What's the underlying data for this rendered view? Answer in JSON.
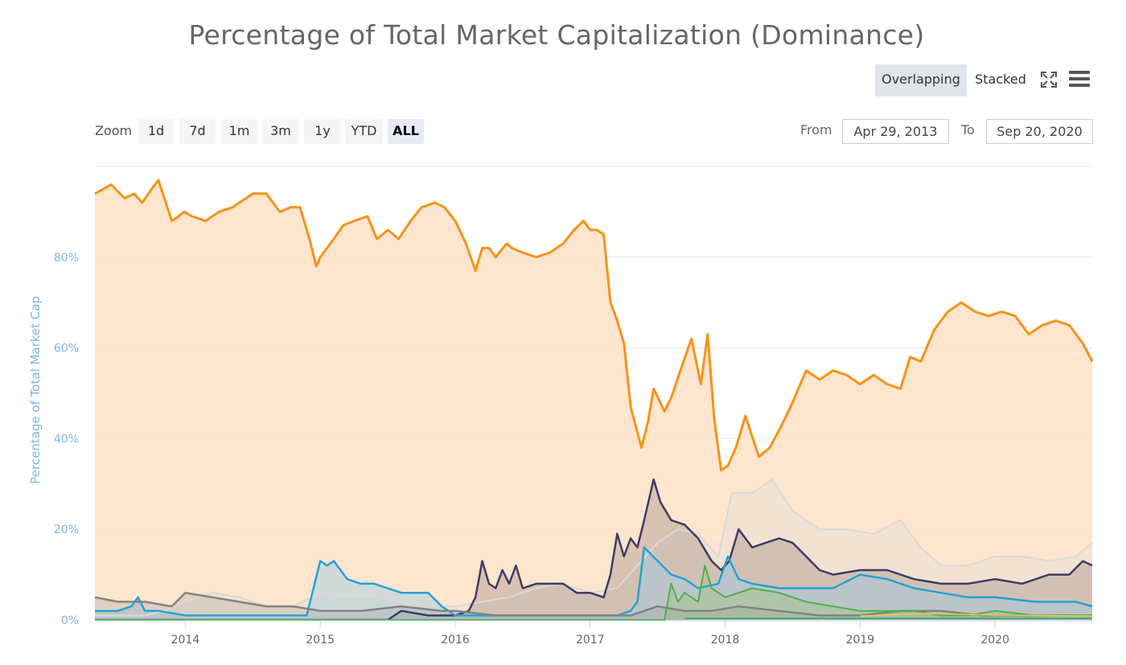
{
  "title": "Percentage of Total Market Capitalization (Dominance)",
  "toolbar": {
    "overlapping_label": "Overlapping",
    "stacked_label": "Stacked",
    "fullscreen_icon": "fullscreen-icon",
    "menu_icon": "hamburger-menu-icon"
  },
  "zoom": {
    "label": "Zoom",
    "buttons": [
      "1d",
      "7d",
      "1m",
      "3m",
      "1y",
      "YTD",
      "ALL"
    ],
    "active": "ALL"
  },
  "range": {
    "from_label": "From",
    "from_value": "Apr 29, 2013",
    "to_label": "To",
    "to_value": "Sep 20, 2020"
  },
  "colors": {
    "btc": "#f7931a",
    "btc_fill": "#fde0c5",
    "others": "#d9d9d9",
    "eth": "#3c3c64",
    "xrp": "#23a2d7",
    "ltc": "#838383",
    "bch": "#4caf50",
    "usdt": "#26a17b",
    "misc": "#f2c94c",
    "grid": "#e6e6e6",
    "axis_text": "#7cb5ec",
    "tick_text": "#666666"
  },
  "chart_data": {
    "type": "area",
    "title": "Percentage of Total Market Capitalization (Dominance)",
    "ylabel": "Percentage of Total Market Cap",
    "xlabel": "",
    "x_range": [
      2013.33,
      2020.72
    ],
    "ylim": [
      0,
      100
    ],
    "y_ticks": [
      "0%",
      "20%",
      "40%",
      "60%",
      "80%"
    ],
    "y_tick_values": [
      0,
      20,
      40,
      60,
      80
    ],
    "x_ticks": [
      "2014",
      "2015",
      "2016",
      "2017",
      "2018",
      "2019",
      "2020"
    ],
    "x_tick_values": [
      2014,
      2015,
      2016,
      2017,
      2018,
      2019,
      2020
    ],
    "grid": true,
    "series": [
      {
        "key": "btc",
        "x": [
          2013.33,
          2013.45,
          2013.55,
          2013.62,
          2013.68,
          2013.75,
          2013.8,
          2013.9,
          2013.95,
          2013.99,
          2014.05,
          2014.15,
          2014.25,
          2014.35,
          2014.5,
          2014.6,
          2014.7,
          2014.78,
          2014.85,
          2014.92,
          2014.97,
          2015.0,
          2015.05,
          2015.1,
          2015.17,
          2015.25,
          2015.35,
          2015.42,
          2015.5,
          2015.58,
          2015.67,
          2015.75,
          2015.85,
          2015.92,
          2016.0,
          2016.08,
          2016.15,
          2016.2,
          2016.25,
          2016.3,
          2016.38,
          2016.42,
          2016.5,
          2016.6,
          2016.7,
          2016.8,
          2016.88,
          2016.95,
          2017.0,
          2017.05,
          2017.1,
          2017.15,
          2017.2,
          2017.25,
          2017.3,
          2017.38,
          2017.43,
          2017.47,
          2017.55,
          2017.6,
          2017.68,
          2017.75,
          2017.82,
          2017.87,
          2017.92,
          2017.97,
          2018.02,
          2018.08,
          2018.15,
          2018.25,
          2018.33,
          2018.42,
          2018.5,
          2018.6,
          2018.7,
          2018.8,
          2018.9,
          2019.0,
          2019.1,
          2019.2,
          2019.3,
          2019.37,
          2019.45,
          2019.55,
          2019.65,
          2019.75,
          2019.85,
          2019.95,
          2020.05,
          2020.15,
          2020.25,
          2020.35,
          2020.45,
          2020.55,
          2020.65,
          2020.72
        ],
        "values": [
          94,
          96,
          93,
          94,
          92,
          95,
          97,
          88,
          89,
          90,
          89,
          88,
          90,
          91,
          94,
          94,
          90,
          91,
          91,
          84,
          78,
          80,
          82,
          84,
          87,
          88,
          89,
          84,
          86,
          84,
          88,
          91,
          92,
          91,
          88,
          83,
          77,
          82,
          82,
          80,
          83,
          82,
          81,
          80,
          81,
          83,
          86,
          88,
          86,
          86,
          85,
          70,
          66,
          61,
          47,
          38,
          44,
          51,
          46,
          49,
          56,
          62,
          52,
          63,
          44,
          33,
          34,
          38,
          45,
          36,
          38,
          43,
          48,
          55,
          53,
          55,
          54,
          52,
          54,
          52,
          51,
          58,
          57,
          64,
          68,
          70,
          68,
          67,
          68,
          67,
          63,
          65,
          66,
          65,
          61,
          57
        ]
      },
      {
        "key": "others",
        "x": [
          2013.33,
          2013.5,
          2013.7,
          2013.85,
          2014.0,
          2014.2,
          2014.4,
          2014.6,
          2014.8,
          2015.0,
          2015.2,
          2015.4,
          2015.6,
          2015.8,
          2016.0,
          2016.2,
          2016.4,
          2016.6,
          2016.8,
          2017.0,
          2017.2,
          2017.35,
          2017.5,
          2017.65,
          2017.8,
          2017.95,
          2018.05,
          2018.2,
          2018.35,
          2018.5,
          2018.7,
          2018.9,
          2019.1,
          2019.3,
          2019.45,
          2019.6,
          2019.8,
          2020.0,
          2020.2,
          2020.4,
          2020.6,
          2020.72
        ],
        "values": [
          1,
          1,
          1,
          2,
          4,
          6,
          5,
          3,
          3,
          6,
          5,
          5,
          4,
          3,
          3,
          4,
          5,
          7,
          8,
          6,
          7,
          12,
          17,
          20,
          19,
          14,
          28,
          28,
          31,
          24,
          20,
          20,
          19,
          22,
          16,
          12,
          12,
          14,
          14,
          13,
          14,
          17
        ]
      },
      {
        "key": "eth",
        "x": [
          2013.33,
          2015.5,
          2015.6,
          2015.8,
          2016.0,
          2016.1,
          2016.15,
          2016.2,
          2016.25,
          2016.3,
          2016.35,
          2016.4,
          2016.45,
          2016.5,
          2016.6,
          2016.7,
          2016.8,
          2016.9,
          2017.0,
          2017.1,
          2017.15,
          2017.2,
          2017.25,
          2017.3,
          2017.35,
          2017.4,
          2017.47,
          2017.52,
          2017.6,
          2017.7,
          2017.8,
          2017.9,
          2017.97,
          2018.03,
          2018.1,
          2018.2,
          2018.3,
          2018.4,
          2018.5,
          2018.6,
          2018.7,
          2018.8,
          2019.0,
          2019.2,
          2019.4,
          2019.6,
          2019.8,
          2020.0,
          2020.2,
          2020.4,
          2020.55,
          2020.65,
          2020.72
        ],
        "values": [
          0,
          0,
          2,
          1,
          1,
          2,
          5,
          13,
          8,
          7,
          11,
          8,
          12,
          7,
          8,
          8,
          8,
          6,
          6,
          5,
          10,
          19,
          14,
          18,
          16,
          22,
          31,
          26,
          22,
          21,
          18,
          13,
          11,
          13,
          20,
          16,
          17,
          18,
          17,
          14,
          11,
          10,
          11,
          11,
          9,
          8,
          8,
          9,
          8,
          10,
          10,
          13,
          12
        ]
      },
      {
        "key": "xrp",
        "x": [
          2013.33,
          2013.5,
          2013.6,
          2013.65,
          2013.7,
          2013.8,
          2014.0,
          2014.5,
          2014.9,
          2014.95,
          2015.0,
          2015.05,
          2015.1,
          2015.2,
          2015.3,
          2015.4,
          2015.5,
          2015.6,
          2015.7,
          2015.8,
          2015.9,
          2016.0,
          2016.3,
          2016.6,
          2016.9,
          2017.2,
          2017.3,
          2017.35,
          2017.4,
          2017.5,
          2017.6,
          2017.7,
          2017.8,
          2017.95,
          2018.02,
          2018.1,
          2018.2,
          2018.4,
          2018.6,
          2018.8,
          2019.0,
          2019.2,
          2019.4,
          2019.6,
          2019.8,
          2020.0,
          2020.3,
          2020.6,
          2020.72
        ],
        "values": [
          2,
          2,
          3,
          5,
          2,
          2,
          1,
          1,
          1,
          7,
          13,
          12,
          13,
          9,
          8,
          8,
          7,
          6,
          6,
          6,
          3,
          1,
          1,
          1,
          1,
          1,
          2,
          4,
          16,
          13,
          10,
          9,
          7,
          8,
          14,
          9,
          8,
          7,
          7,
          7,
          10,
          9,
          7,
          6,
          5,
          5,
          4,
          4,
          3
        ]
      },
      {
        "key": "ltc",
        "x": [
          2013.33,
          2013.5,
          2013.7,
          2013.9,
          2014.0,
          2014.2,
          2014.4,
          2014.6,
          2014.8,
          2015.0,
          2015.3,
          2015.6,
          2015.9,
          2016.0,
          2016.3,
          2016.6,
          2016.9,
          2017.0,
          2017.3,
          2017.5,
          2017.7,
          2017.9,
          2018.1,
          2018.4,
          2018.7,
          2019.0,
          2019.3,
          2019.6,
          2019.9,
          2020.2,
          2020.5,
          2020.72
        ],
        "values": [
          5,
          4,
          4,
          3,
          6,
          5,
          4,
          3,
          3,
          2,
          2,
          3,
          2,
          2,
          1,
          1,
          1,
          1,
          1,
          3,
          2,
          2,
          3,
          2,
          1,
          1,
          2,
          2,
          1,
          1,
          1,
          1
        ]
      },
      {
        "key": "bch",
        "x": [
          2013.33,
          2017.55,
          2017.6,
          2017.65,
          2017.7,
          2017.8,
          2017.85,
          2017.9,
          2017.95,
          2018.0,
          2018.2,
          2018.4,
          2018.6,
          2018.8,
          2019.0,
          2019.2,
          2019.4,
          2019.6,
          2019.8,
          2020.0,
          2020.3,
          2020.6,
          2020.72
        ],
        "values": [
          0,
          0,
          8,
          4,
          6,
          4,
          12,
          7,
          6,
          5,
          7,
          6,
          4,
          3,
          2,
          2,
          2,
          1,
          1,
          2,
          1,
          1,
          1
        ]
      }
    ]
  }
}
